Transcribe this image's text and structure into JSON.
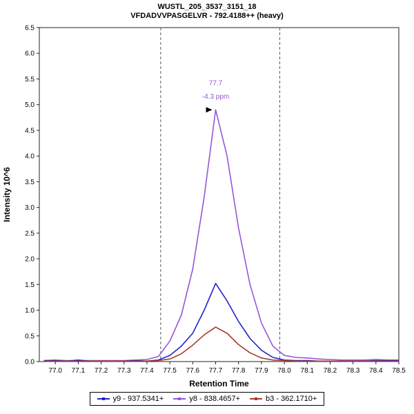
{
  "header": {
    "title": "WUSTL_205_3537_3151_18",
    "subtitle": "VFDADVVPASGELVR - 792.4188++ (heavy)"
  },
  "chart_data": {
    "type": "line",
    "title": "WUSTL_205_3537_3151_18",
    "subtitle": "VFDADVVPASGELVR - 792.4188++ (heavy)",
    "xlabel": "Retention Time",
    "ylabel": "Intensity 10^6",
    "xlim": [
      76.93,
      78.5
    ],
    "ylim": [
      0,
      6.5
    ],
    "x_ticks": [
      77.0,
      77.1,
      77.2,
      77.3,
      77.4,
      77.5,
      77.6,
      77.7,
      77.8,
      77.9,
      78.0,
      78.1,
      78.2,
      78.3,
      78.4,
      78.5
    ],
    "y_ticks": [
      0.0,
      0.5,
      1.0,
      1.5,
      2.0,
      2.5,
      3.0,
      3.5,
      4.0,
      4.5,
      5.0,
      5.5,
      6.0,
      6.5
    ],
    "grid": false,
    "legend_position": "bottom-center",
    "boundaries": [
      77.46,
      77.98
    ],
    "boundary_color": "#555555",
    "annotation": {
      "x": 77.7,
      "label": "77.7",
      "sublabel": "-4.3 ppm",
      "color": "#9456d7",
      "arrow_y": 4.9,
      "arrow_color": "#000000"
    },
    "x": [
      76.95,
      77.0,
      77.05,
      77.1,
      77.15,
      77.2,
      77.25,
      77.3,
      77.35,
      77.4,
      77.45,
      77.5,
      77.55,
      77.6,
      77.65,
      77.7,
      77.75,
      77.8,
      77.85,
      77.9,
      77.95,
      78.0,
      78.05,
      78.1,
      78.15,
      78.2,
      78.25,
      78.3,
      78.35,
      78.4,
      78.45,
      78.5
    ],
    "series": [
      {
        "name": "y9 - 937.5341+",
        "color": "#2121cf",
        "values": [
          0.02,
          0.02,
          0.01,
          0.03,
          0.01,
          0.01,
          0.01,
          0.01,
          0.02,
          0.01,
          0.03,
          0.12,
          0.3,
          0.55,
          1.0,
          1.52,
          1.18,
          0.78,
          0.45,
          0.22,
          0.08,
          0.03,
          0.02,
          0.02,
          0.01,
          0.01,
          0.01,
          0.01,
          0.01,
          0.02,
          0.02,
          0.02
        ]
      },
      {
        "name": "y8 - 838.4657+",
        "color": "#9456d7",
        "values": [
          0.02,
          0.03,
          0.02,
          0.02,
          0.02,
          0.02,
          0.02,
          0.02,
          0.03,
          0.04,
          0.1,
          0.4,
          0.9,
          1.8,
          3.2,
          4.9,
          4.0,
          2.6,
          1.5,
          0.75,
          0.3,
          0.12,
          0.08,
          0.07,
          0.05,
          0.04,
          0.03,
          0.03,
          0.03,
          0.04,
          0.03,
          0.03
        ]
      },
      {
        "name": "b3 - 362.1710+",
        "color": "#a5392c",
        "values": [
          0.01,
          0.01,
          0.01,
          0.01,
          0.01,
          0.01,
          0.01,
          0.01,
          0.01,
          0.01,
          0.02,
          0.05,
          0.15,
          0.32,
          0.52,
          0.67,
          0.55,
          0.33,
          0.17,
          0.07,
          0.03,
          0.02,
          0.01,
          0.01,
          0.01,
          0.01,
          0.01,
          0.01,
          0.01,
          0.01,
          0.01,
          0.01
        ]
      }
    ]
  }
}
